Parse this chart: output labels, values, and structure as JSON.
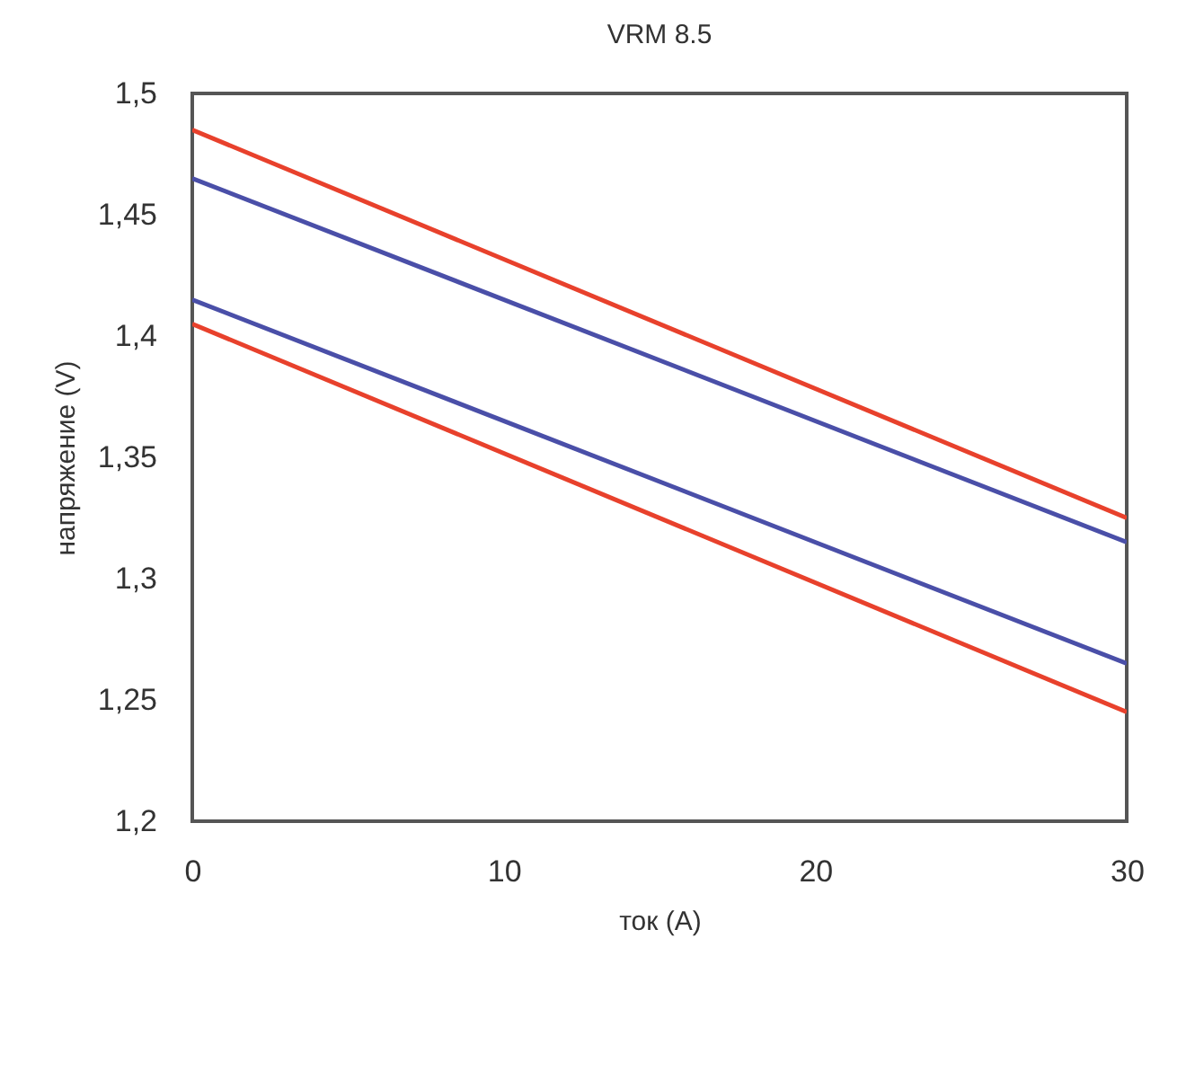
{
  "chart_data": {
    "type": "line",
    "title": "VRM 8.5",
    "xlabel": "ток (A)",
    "ylabel": "напряжение (V)",
    "x": [
      0,
      30
    ],
    "series": [
      {
        "color": "#e8412c",
        "values": [
          1.485,
          1.325
        ]
      },
      {
        "color": "#4a4fa8",
        "values": [
          1.465,
          1.315
        ]
      },
      {
        "color": "#4a4fa8",
        "values": [
          1.415,
          1.265
        ]
      },
      {
        "color": "#e8412c",
        "values": [
          1.405,
          1.245
        ]
      }
    ],
    "xlim": [
      0,
      30
    ],
    "xticks": [
      0,
      10,
      20,
      30
    ],
    "ylim": [
      1.2,
      1.5
    ],
    "yticks": [
      {
        "value": 1.2,
        "label": "1,2"
      },
      {
        "value": 1.25,
        "label": "1,25"
      },
      {
        "value": 1.3,
        "label": "1,3"
      },
      {
        "value": 1.35,
        "label": "1,35"
      },
      {
        "value": 1.4,
        "label": "1,4"
      },
      {
        "value": 1.45,
        "label": "1,45"
      },
      {
        "value": 1.5,
        "label": "1,5"
      }
    ],
    "grid": false,
    "marker": "none",
    "line_style": "solid"
  }
}
